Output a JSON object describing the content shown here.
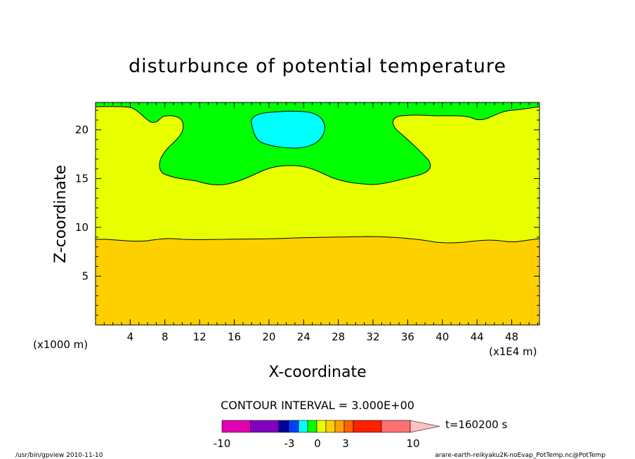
{
  "chart_data": {
    "type": "heatmap",
    "title": "disturbunce of potential temperature",
    "xlabel": "X-coordinate",
    "ylabel": "Z-coordinate",
    "x_unit_note": "(x1E4 m)",
    "y_unit_note": "(x1000 m)",
    "xlim": [
      0,
      51.2
    ],
    "ylim": [
      0,
      22.8
    ],
    "x_ticks": [
      "4",
      "8",
      "12",
      "16",
      "20",
      "24",
      "28",
      "32",
      "36",
      "40",
      "44",
      "48"
    ],
    "y_ticks": [
      "5",
      "10",
      "15",
      "20"
    ],
    "contour_interval_text": "CONTOUR INTERVAL = 3.000E+00",
    "time_label": "t=160200 s",
    "colorbar_labels": [
      "-10",
      "-3",
      "0",
      "3",
      "10"
    ],
    "colorbar_colors": [
      "#e000b0",
      "#8000c0",
      "#0000a0",
      "#0040ff",
      "#00ffff",
      "#00ff00",
      "#e8ff00",
      "#ffd000",
      "#ffa000",
      "#ff6000",
      "#ff2000",
      "#ff7070",
      "#ffc0c0"
    ],
    "regions": [
      {
        "level": "orange",
        "color": "#ffd000",
        "description_range": "below z≈9"
      },
      {
        "level": "yellow",
        "color": "#e8ff00",
        "description_range": "z≈9 to ≈15"
      },
      {
        "level": "green",
        "color": "#00ff00",
        "description_range": "upper layer"
      },
      {
        "level": "cyan",
        "color": "#00ffff",
        "description_range": "core near x≈20–26, z≈18–22"
      }
    ]
  },
  "footer": {
    "left": "/usr/bin/gpview  2010-11-10",
    "right": "arare-earth-reikyaku2K-noEvap_PotTemp.nc@PotTemp"
  }
}
